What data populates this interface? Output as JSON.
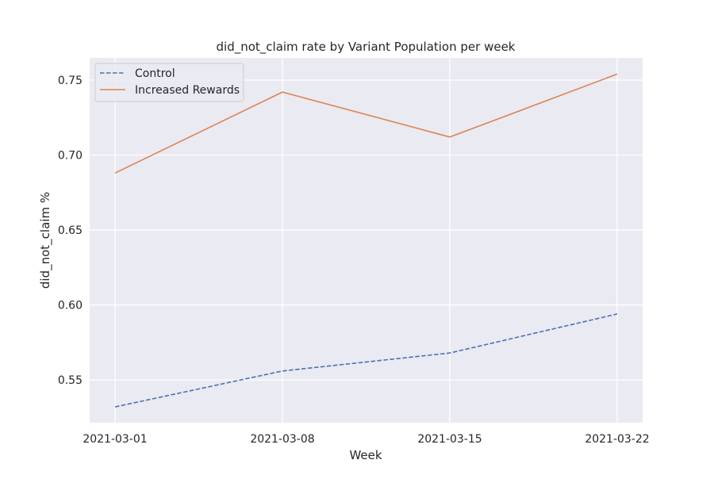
{
  "chart_data": {
    "type": "line",
    "title": "did_not_claim rate by Variant Population per week",
    "xlabel": "Week",
    "ylabel": "did_not_claim %",
    "x": [
      "2021-03-01",
      "2021-03-08",
      "2021-03-15",
      "2021-03-22"
    ],
    "ylim": [
      0.5215,
      0.7648
    ],
    "yticks": [
      0.55,
      0.6,
      0.65,
      0.7,
      0.75
    ],
    "ytick_labels": [
      "0.55",
      "0.60",
      "0.65",
      "0.70",
      "0.75"
    ],
    "xtick_labels": [
      "2021-03-01",
      "2021-03-08",
      "2021-03-15",
      "2021-03-22"
    ],
    "grid": true,
    "legend_position": "top-left",
    "background_color": "#eaeaf2",
    "series": [
      {
        "name": "Control",
        "values": [
          0.532,
          0.556,
          0.568,
          0.594
        ],
        "color": "#4c72b0",
        "style": "dashed"
      },
      {
        "name": "Increased Rewards",
        "values": [
          0.688,
          0.742,
          0.712,
          0.754
        ],
        "color": "#dd8452",
        "style": "solid"
      }
    ]
  }
}
